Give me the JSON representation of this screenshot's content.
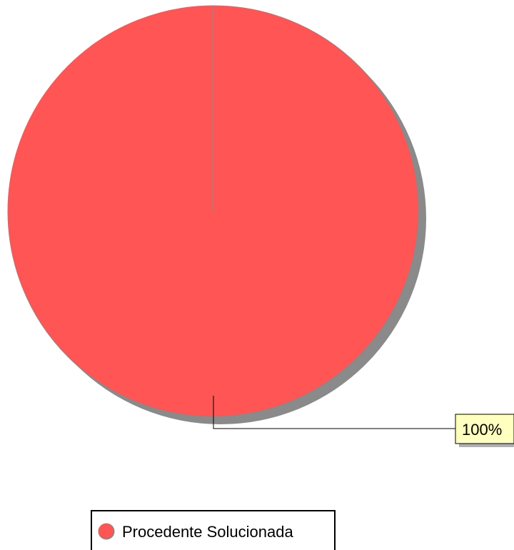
{
  "chart_data": {
    "type": "pie",
    "title": "",
    "categories": [
      "Procedente Solucionada"
    ],
    "values": [
      100
    ],
    "data_labels": [
      "100%"
    ],
    "colors": [
      "#ff5555"
    ],
    "legend": {
      "placement": "bottom-center",
      "entries": [
        "Procedente Solucionada"
      ]
    },
    "style": {
      "shadow_color": "#8a8a8a",
      "outline_color": "#8a8a8a",
      "label_background": "#ffffc0",
      "label_shadow": "#b0b0b0"
    }
  }
}
